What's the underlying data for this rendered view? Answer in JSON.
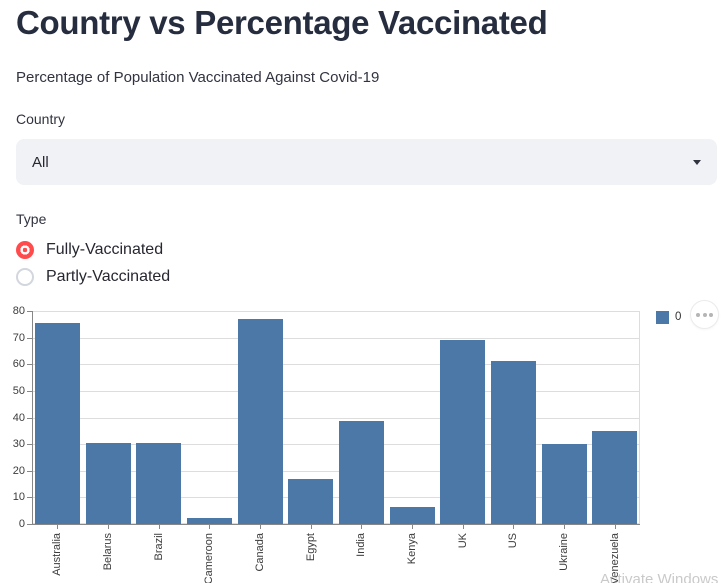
{
  "header": {
    "title": "Country vs Percentage Vaccinated",
    "subtitle": "Percentage of Population Vaccinated Against Covid-19"
  },
  "filters": {
    "country": {
      "label": "Country",
      "value": "All"
    },
    "type": {
      "label": "Type",
      "options": [
        {
          "label": "Fully-Vaccinated",
          "selected": true
        },
        {
          "label": "Partly-Vaccinated",
          "selected": false
        }
      ]
    }
  },
  "chart_data": {
    "type": "bar",
    "title": "",
    "xlabel": "",
    "ylabel": "",
    "categories": [
      "Australia",
      "Belarus",
      "Brazil",
      "Cameroon",
      "Canada",
      "Egypt",
      "India",
      "Kenya",
      "UK",
      "US",
      "Ukraine",
      "Venezuela"
    ],
    "values": [
      75.5,
      30.6,
      30.6,
      2.4,
      77.2,
      17.1,
      38.6,
      6.4,
      69.2,
      61.4,
      29.9,
      34.9
    ],
    "series_name": "0",
    "ylim": [
      0,
      80
    ],
    "yticks": [
      0,
      10,
      20,
      30,
      40,
      50,
      60,
      70,
      80
    ],
    "grid": true,
    "legend_position": "top-right",
    "bar_color": "#4c78a8"
  },
  "chart_ui": {
    "legend_label": "0",
    "menu_icon": "ellipsis-circle"
  },
  "watermark": "Activate Windows",
  "colors": {
    "accent_red": "#ff4b4b",
    "bar_blue": "#4c78a8",
    "select_background": "#f0f2f6",
    "text": "#262730",
    "grid": "#dddddd",
    "axis": "#878787"
  }
}
